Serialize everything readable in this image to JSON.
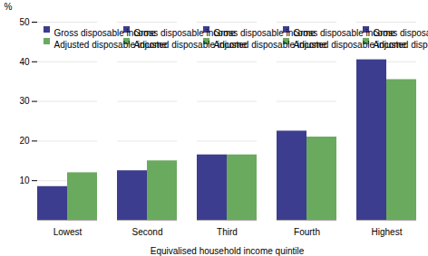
{
  "chart_data": {
    "type": "bar",
    "categories": [
      "Lowest",
      "Second",
      "Third",
      "Fourth",
      "Highest"
    ],
    "series": [
      {
        "name": "Gross disposable income",
        "color": "#3d3d8f",
        "values": [
          8.5,
          12.5,
          16.5,
          22.5,
          40.5
        ]
      },
      {
        "name": "Adjusted disposable income",
        "color": "#6aaa5e",
        "values": [
          12.0,
          15.0,
          16.5,
          21.0,
          35.5
        ]
      }
    ],
    "xlabel": "Equivalised household income quintile",
    "ylabel": "%",
    "ylim": [
      0,
      50
    ],
    "yticks": [
      10,
      20,
      30,
      40,
      50
    ],
    "grid": true,
    "legend": "upper left"
  }
}
